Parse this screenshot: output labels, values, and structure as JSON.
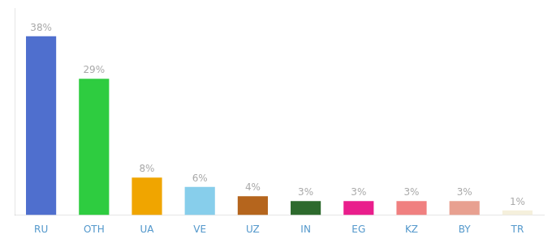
{
  "chart_data": {
    "type": "bar",
    "categories": [
      "RU",
      "OTH",
      "UA",
      "VE",
      "UZ",
      "IN",
      "EG",
      "KZ",
      "BY",
      "TR"
    ],
    "values": [
      38,
      29,
      8,
      6,
      4,
      3,
      3,
      3,
      3,
      1
    ],
    "value_labels": [
      "38%",
      "29%",
      "8%",
      "6%",
      "4%",
      "3%",
      "3%",
      "3%",
      "3%",
      "1%"
    ],
    "colors": [
      "#4f6fce",
      "#2ecc40",
      "#f0a500",
      "#87ceeb",
      "#b5651d",
      "#2d6a2d",
      "#e91e8c",
      "#f08080",
      "#e8a090",
      "#f5f0dc"
    ],
    "ylim": [
      0,
      44
    ],
    "grid": false,
    "data_labels": true,
    "tick_labels": "x"
  }
}
